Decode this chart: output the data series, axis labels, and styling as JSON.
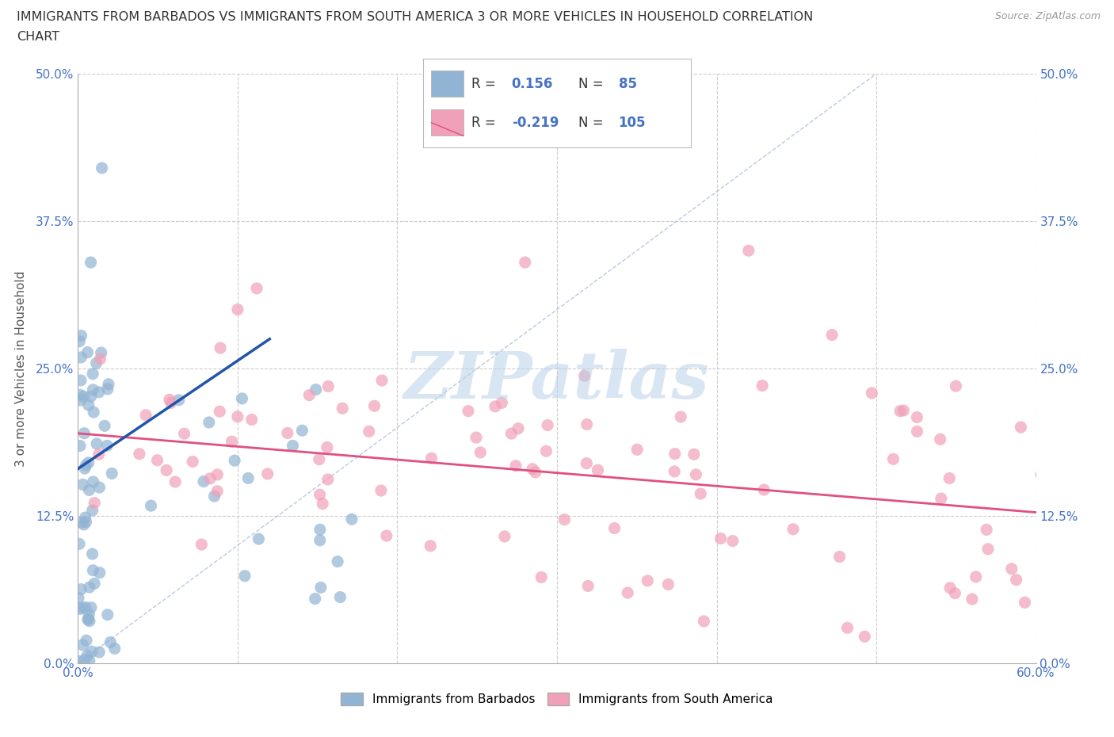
{
  "title_line1": "IMMIGRANTS FROM BARBADOS VS IMMIGRANTS FROM SOUTH AMERICA 3 OR MORE VEHICLES IN HOUSEHOLD CORRELATION",
  "title_line2": "CHART",
  "source": "Source: ZipAtlas.com",
  "ylabel": "3 or more Vehicles in Household",
  "xlim": [
    0,
    0.6
  ],
  "ylim": [
    0,
    0.5
  ],
  "ytick_vals": [
    0.0,
    0.125,
    0.25,
    0.375,
    0.5
  ],
  "ytick_labels": [
    "0.0%",
    "12.5%",
    "25.0%",
    "37.5%",
    "50.0%"
  ],
  "xtick_vals": [
    0.0,
    0.1,
    0.2,
    0.3,
    0.4,
    0.5,
    0.6
  ],
  "xtick_labels": [
    "0.0%",
    "",
    "",
    "",
    "",
    "",
    "60.0%"
  ],
  "legend_labels": [
    "Immigrants from Barbados",
    "Immigrants from South America"
  ],
  "barbados_color": "#92b4d4",
  "south_america_color": "#f0a0b8",
  "barbados_line_color": "#2255aa",
  "south_america_line_color": "#e05080",
  "R_barbados": 0.156,
  "N_barbados": 85,
  "R_south_america": -0.219,
  "N_south_america": 105,
  "watermark": "ZIPatlas",
  "bg_color": "#ffffff",
  "tick_color": "#4472c4",
  "title_color": "#333333",
  "source_color": "#999999",
  "grid_color": "#cccccc",
  "ref_line_color": "#a0b4d0",
  "barbados_trend_x": [
    0.0,
    0.12
  ],
  "barbados_trend_y": [
    0.165,
    0.275
  ],
  "south_trend_x": [
    0.0,
    0.6
  ],
  "south_trend_y": [
    0.195,
    0.128
  ]
}
